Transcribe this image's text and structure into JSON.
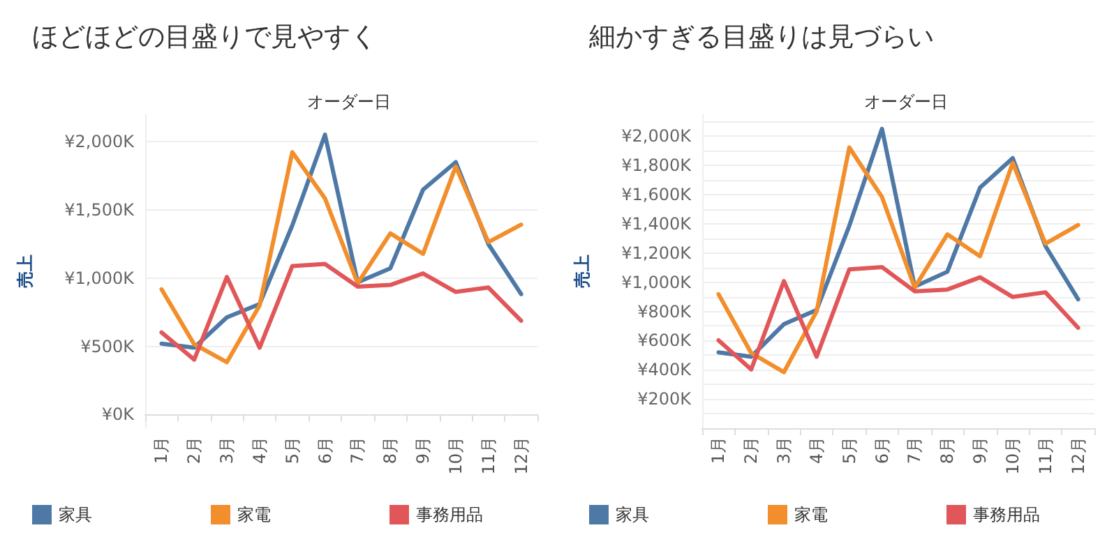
{
  "chart_data": [
    {
      "type": "line",
      "title": "ほどほどの目盛りで見やすく",
      "xlabel": "オーダー日",
      "ylabel": "売上",
      "categories": [
        "1月",
        "2月",
        "3月",
        "4月",
        "5月",
        "6月",
        "7月",
        "8月",
        "9月",
        "10月",
        "11月",
        "12月"
      ],
      "series": [
        {
          "name": "家具",
          "color": "#4e79a7",
          "values": [
            520,
            490,
            713,
            810,
            1386,
            2051,
            970,
            1072,
            1648,
            1850,
            1248,
            883
          ]
        },
        {
          "name": "家電",
          "color": "#f28e2b",
          "values": [
            918,
            515,
            384,
            800,
            1923,
            1584,
            963,
            1328,
            1178,
            1818,
            1264,
            1392
          ]
        },
        {
          "name": "事務用品",
          "color": "#e15759",
          "values": [
            602,
            403,
            1008,
            490,
            1088,
            1104,
            938,
            950,
            1034,
            899,
            931,
            688
          ]
        }
      ],
      "ylim": [
        -100,
        2200
      ],
      "yticks": [
        {
          "value": 0,
          "label": "¥0K"
        },
        {
          "value": 500,
          "label": "¥500K"
        },
        {
          "value": 1000,
          "label": "¥1,000K"
        },
        {
          "value": 1500,
          "label": "¥1,500K"
        },
        {
          "value": 2000,
          "label": "¥2,000K"
        }
      ],
      "grid": "y",
      "legend": "bottom left",
      "marker": "none",
      "line_style": "solid"
    },
    {
      "type": "line",
      "title": "細かすぎる目盛りは見づらい",
      "xlabel": "オーダー日",
      "ylabel": "売上",
      "categories": [
        "1月",
        "2月",
        "3月",
        "4月",
        "5月",
        "6月",
        "7月",
        "8月",
        "9月",
        "10月",
        "11月",
        "12月"
      ],
      "series": [
        {
          "name": "家具",
          "color": "#4e79a7",
          "values": [
            520,
            490,
            713,
            810,
            1386,
            2051,
            970,
            1072,
            1648,
            1850,
            1248,
            883
          ]
        },
        {
          "name": "家電",
          "color": "#f28e2b",
          "values": [
            918,
            515,
            384,
            800,
            1923,
            1584,
            963,
            1328,
            1178,
            1818,
            1264,
            1392
          ]
        },
        {
          "name": "事務用品",
          "color": "#e15759",
          "values": [
            602,
            403,
            1008,
            490,
            1088,
            1104,
            938,
            950,
            1034,
            899,
            931,
            688
          ]
        }
      ],
      "ylim": [
        0,
        2150
      ],
      "yticks": [
        {
          "value": 0,
          "label": null
        },
        {
          "value": 100,
          "label": null
        },
        {
          "value": 200,
          "label": "¥200K"
        },
        {
          "value": 300,
          "label": null
        },
        {
          "value": 400,
          "label": "¥400K"
        },
        {
          "value": 500,
          "label": null
        },
        {
          "value": 600,
          "label": "¥600K"
        },
        {
          "value": 700,
          "label": null
        },
        {
          "value": 800,
          "label": "¥800K"
        },
        {
          "value": 900,
          "label": null
        },
        {
          "value": 1000,
          "label": "¥1,000K"
        },
        {
          "value": 1100,
          "label": null
        },
        {
          "value": 1200,
          "label": "¥1,200K"
        },
        {
          "value": 1300,
          "label": null
        },
        {
          "value": 1400,
          "label": "¥1,400K"
        },
        {
          "value": 1500,
          "label": null
        },
        {
          "value": 1600,
          "label": "¥1,600K"
        },
        {
          "value": 1700,
          "label": null
        },
        {
          "value": 1800,
          "label": "¥1,800K"
        },
        {
          "value": 1900,
          "label": null
        },
        {
          "value": 2000,
          "label": "¥2,000K"
        },
        {
          "value": 2100,
          "label": null
        }
      ],
      "grid": "y",
      "legend": "bottom left",
      "marker": "none",
      "line_style": "solid"
    }
  ]
}
